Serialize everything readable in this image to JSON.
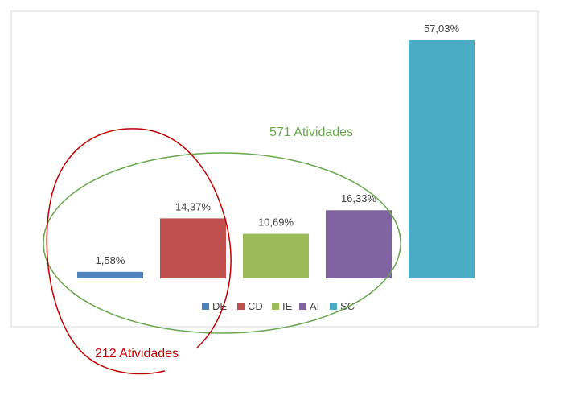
{
  "chart_data": {
    "type": "bar",
    "categories": [
      "DE",
      "CD",
      "IE",
      "AI",
      "SC"
    ],
    "values": [
      1.58,
      14.37,
      10.69,
      16.33,
      57.03
    ],
    "data_labels": [
      "1,58%",
      "14,37%",
      "10,69%",
      "16,33%",
      "57,03%"
    ],
    "colors": [
      "#4f81bd",
      "#c0504d",
      "#9bbb59",
      "#8064a2",
      "#4bacc6"
    ],
    "legend": {
      "placement": "bottom",
      "entries": [
        "DE",
        "CD",
        "IE",
        "AI",
        "SC"
      ]
    },
    "grid": false,
    "ylim": [
      0,
      57.03
    ]
  },
  "annotations": {
    "green_label": "571 Atividades",
    "green_color": "#6aa84f",
    "red_label": "212 Atividades",
    "red_color": "#c00000"
  }
}
